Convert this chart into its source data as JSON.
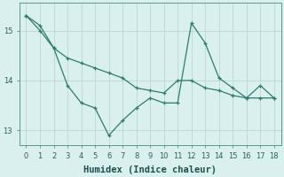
{
  "line1_x": [
    0,
    1,
    2,
    3,
    4,
    5,
    6,
    7,
    8,
    9,
    10,
    11,
    12,
    13,
    14,
    15,
    16,
    17,
    18
  ],
  "line1_y": [
    15.3,
    15.0,
    14.65,
    13.9,
    13.55,
    13.45,
    12.9,
    13.2,
    13.45,
    13.65,
    13.55,
    13.55,
    15.15,
    14.75,
    14.05,
    13.85,
    13.65,
    13.9,
    13.65
  ],
  "line2_x": [
    0,
    1,
    2,
    3,
    4,
    5,
    6,
    7,
    8,
    9,
    10,
    11,
    12,
    13,
    14,
    15,
    16,
    17,
    18
  ],
  "line2_y": [
    15.3,
    15.1,
    14.65,
    14.45,
    14.35,
    14.25,
    14.15,
    14.05,
    13.85,
    13.8,
    13.75,
    14.0,
    14.0,
    13.85,
    13.8,
    13.7,
    13.65,
    13.65,
    13.65
  ],
  "line_color": "#2a7d6f",
  "bg_color": "#d9f0ee",
  "grid_color": "#b8d9d4",
  "xlabel": "Humidex (Indice chaleur)",
  "xlabel_fontsize": 7.5,
  "yticks": [
    13,
    14,
    15
  ],
  "xticks": [
    0,
    1,
    2,
    3,
    4,
    5,
    6,
    7,
    8,
    9,
    10,
    11,
    12,
    13,
    14,
    15,
    16,
    17,
    18
  ],
  "xlim": [
    -0.5,
    18.5
  ],
  "ylim": [
    12.7,
    15.55
  ]
}
